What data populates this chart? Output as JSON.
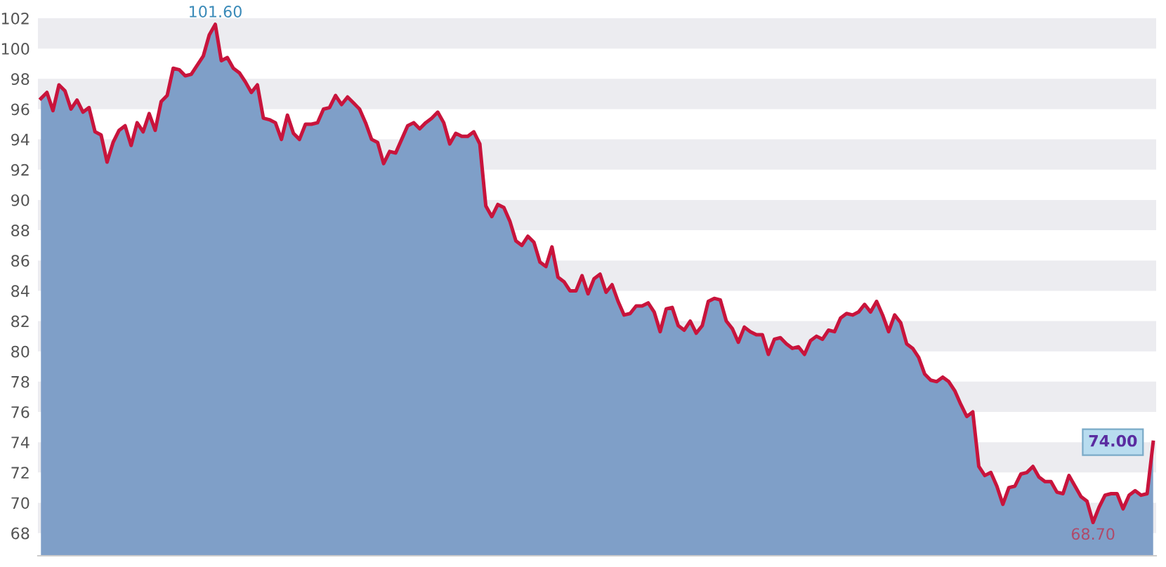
{
  "chart_data": {
    "type": "area",
    "categories": [
      null,
      null,
      null,
      null,
      null,
      null,
      null,
      null,
      null,
      null,
      null,
      null,
      null,
      null,
      null,
      null,
      null,
      null,
      null,
      null,
      null,
      null,
      null,
      null,
      null,
      null,
      null,
      null,
      null,
      null,
      null,
      null,
      null,
      null,
      null,
      null,
      null,
      null,
      null,
      null,
      null,
      null,
      null,
      null,
      null,
      null,
      null,
      null,
      null,
      null,
      null,
      null,
      null,
      null,
      null,
      null,
      null,
      null,
      null,
      null,
      null,
      null,
      null,
      null,
      null,
      null,
      null,
      null,
      null,
      null,
      null,
      null,
      null,
      null,
      null,
      null,
      null,
      null,
      null,
      null,
      null,
      null,
      null,
      null,
      null,
      null,
      null,
      null,
      null,
      null,
      null,
      null,
      null,
      null,
      null,
      null,
      null,
      null,
      null,
      null,
      null,
      null,
      null,
      null,
      null,
      null,
      null,
      null,
      null,
      null,
      null,
      null,
      null,
      null,
      null,
      null,
      null,
      null,
      null,
      null,
      null,
      null,
      null,
      null,
      null,
      null,
      null,
      null,
      null,
      null,
      null,
      null,
      null,
      null,
      null,
      null,
      null,
      null,
      null,
      null,
      null,
      null,
      null,
      null,
      null,
      null,
      null,
      null,
      null,
      null,
      null,
      null,
      null,
      null,
      null,
      null,
      null,
      null,
      null,
      null,
      null,
      null,
      null,
      null,
      null,
      null,
      null,
      null,
      null,
      null,
      null,
      null,
      null,
      null,
      null,
      null,
      null,
      null,
      null,
      null,
      null,
      null,
      null,
      null,
      null,
      null
    ],
    "series": [
      {
        "color": "#7f9fc8",
        "values": [
          96.7,
          97.1,
          95.9,
          97.6,
          97.2,
          96.0,
          96.6,
          95.8,
          96.1,
          94.5,
          94.3,
          92.5,
          93.8,
          94.6,
          94.9,
          93.6,
          95.1,
          94.5,
          95.7,
          94.6,
          96.5,
          96.9,
          98.7,
          98.6,
          98.2,
          98.3,
          98.9,
          99.5,
          100.9,
          101.6,
          99.2,
          99.4,
          98.7,
          98.4,
          97.8,
          97.1,
          97.6,
          95.4,
          95.3,
          95.1,
          94.0,
          95.6,
          94.4,
          94.0,
          95.0,
          95.0,
          95.1,
          96.0,
          96.1,
          96.9,
          96.3,
          96.8,
          96.4,
          96.0,
          95.1,
          94.0,
          93.8,
          92.4,
          93.2,
          93.1,
          94.0,
          94.9,
          95.1,
          94.7,
          95.1,
          95.4,
          95.8,
          95.1,
          93.7,
          94.4,
          94.2,
          94.2,
          94.5,
          93.7,
          89.6,
          88.9,
          89.7,
          89.5,
          88.6,
          87.3,
          87.0,
          87.6,
          87.2,
          85.9,
          85.6,
          86.9,
          84.9,
          84.6,
          84.0,
          84.0,
          85.0,
          83.8,
          84.8,
          85.1,
          83.9,
          84.4,
          83.3,
          82.4,
          82.5,
          83.0,
          83.0,
          83.2,
          82.6,
          81.3,
          82.8,
          82.9,
          81.7,
          81.4,
          82.0,
          81.2,
          81.7,
          83.3,
          83.5,
          83.4,
          82.0,
          81.5,
          80.6,
          81.6,
          81.3,
          81.1,
          81.1,
          79.8,
          80.8,
          80.9,
          80.5,
          80.2,
          80.3,
          79.8,
          80.7,
          81.0,
          80.8,
          81.4,
          81.3,
          82.2,
          82.5,
          82.4,
          82.6,
          83.1,
          82.6,
          83.3,
          82.4,
          81.3,
          82.4,
          81.9,
          80.5,
          80.2,
          79.6,
          78.5,
          78.1,
          78.0,
          78.3,
          78.0,
          77.4,
          76.5,
          75.7,
          76.0,
          72.4,
          71.8,
          72.0,
          71.1,
          69.9,
          71.0,
          71.1,
          71.9,
          72.0,
          72.4,
          71.7,
          71.4,
          71.4,
          70.7,
          70.6,
          71.8,
          71.1,
          70.4,
          70.1,
          68.7,
          69.7,
          70.5,
          70.6,
          70.6,
          69.6,
          70.5,
          70.8,
          70.5,
          70.6,
          74.0
        ]
      },
      {
        "type": "line",
        "color": "#c8143c",
        "values": [
          96.7,
          97.1,
          95.9,
          97.6,
          97.2,
          96.0,
          96.6,
          95.8,
          96.1,
          94.5,
          94.3,
          92.5,
          93.8,
          94.6,
          94.9,
          93.6,
          95.1,
          94.5,
          95.7,
          94.6,
          96.5,
          96.9,
          98.7,
          98.6,
          98.2,
          98.3,
          98.9,
          99.5,
          100.9,
          101.6,
          99.2,
          99.4,
          98.7,
          98.4,
          97.8,
          97.1,
          97.6,
          95.4,
          95.3,
          95.1,
          94.0,
          95.6,
          94.4,
          94.0,
          95.0,
          95.0,
          95.1,
          96.0,
          96.1,
          96.9,
          96.3,
          96.8,
          96.4,
          96.0,
          95.1,
          94.0,
          93.8,
          92.4,
          93.2,
          93.1,
          94.0,
          94.9,
          95.1,
          94.7,
          95.1,
          95.4,
          95.8,
          95.1,
          93.7,
          94.4,
          94.2,
          94.2,
          94.5,
          93.7,
          89.6,
          88.9,
          89.7,
          89.5,
          88.6,
          87.3,
          87.0,
          87.6,
          87.2,
          85.9,
          85.6,
          86.9,
          84.9,
          84.6,
          84.0,
          84.0,
          85.0,
          83.8,
          84.8,
          85.1,
          83.9,
          84.4,
          83.3,
          82.4,
          82.5,
          83.0,
          83.0,
          83.2,
          82.6,
          81.3,
          82.8,
          82.9,
          81.7,
          81.4,
          82.0,
          81.2,
          81.7,
          83.3,
          83.5,
          83.4,
          82.0,
          81.5,
          80.6,
          81.6,
          81.3,
          81.1,
          81.1,
          79.8,
          80.8,
          80.9,
          80.5,
          80.2,
          80.3,
          79.8,
          80.7,
          81.0,
          80.8,
          81.4,
          81.3,
          82.2,
          82.5,
          82.4,
          82.6,
          83.1,
          82.6,
          83.3,
          82.4,
          81.3,
          82.4,
          81.9,
          80.5,
          80.2,
          79.6,
          78.5,
          78.1,
          78.0,
          78.3,
          78.0,
          77.4,
          76.5,
          75.7,
          76.0,
          72.4,
          71.8,
          72.0,
          71.1,
          69.9,
          71.0,
          71.1,
          71.9,
          72.0,
          72.4,
          71.7,
          71.4,
          71.4,
          70.7,
          70.6,
          71.8,
          71.1,
          70.4,
          70.1,
          68.7,
          69.7,
          70.5,
          70.6,
          70.6,
          69.6,
          70.5,
          70.8,
          70.5,
          70.6,
          74.0
        ]
      }
    ],
    "ylim": [
      66.5,
      102
    ],
    "yticks": [
      68,
      70,
      72,
      74,
      76,
      78,
      80,
      82,
      84,
      86,
      88,
      90,
      92,
      94,
      96,
      98,
      100,
      102
    ],
    "tick_labels": "y",
    "marker": "none",
    "line_style": "solid",
    "annotations": [
      {
        "text": "101.60",
        "y": 101.6
      },
      {
        "text": "68.70",
        "y": 68.7
      },
      {
        "text": "74.00",
        "y": 74.0
      }
    ]
  }
}
